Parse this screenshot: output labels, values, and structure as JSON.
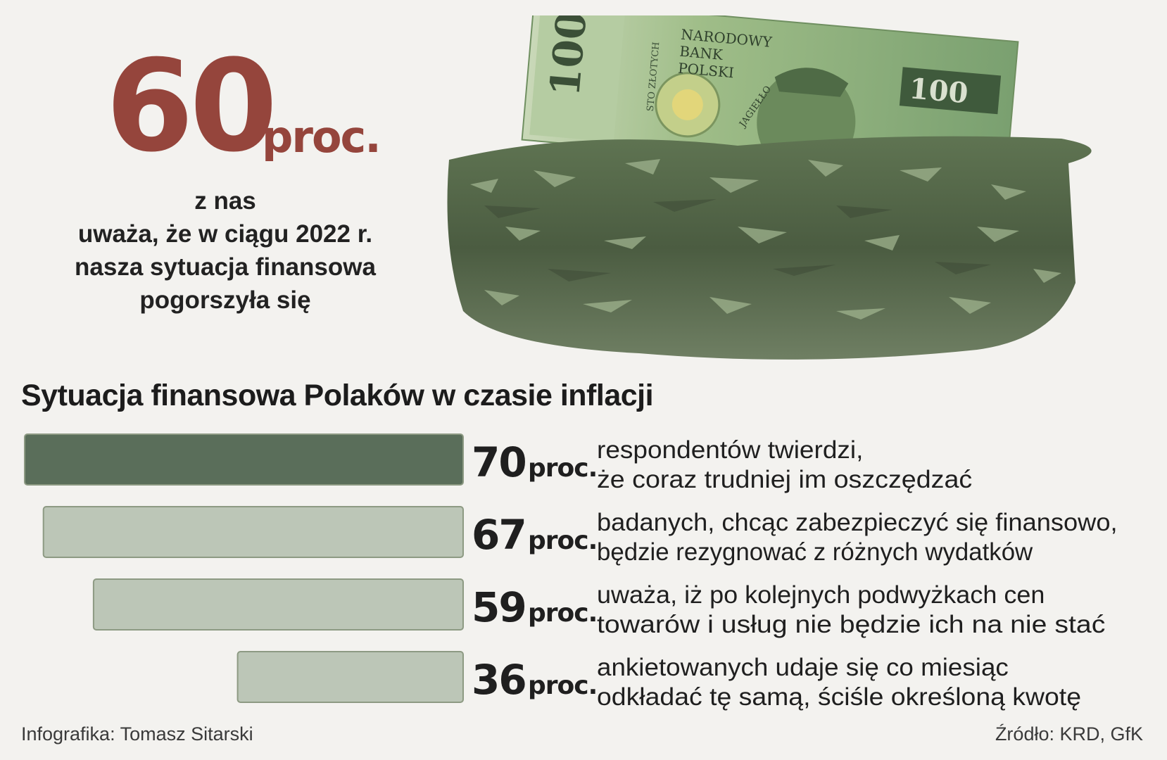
{
  "hero": {
    "number": "60",
    "unit": "proc.",
    "lines": [
      "z nas",
      "uważa, że w ciągu 2022 r.",
      "nasza sytuacja finansowa",
      "pogorszyła się"
    ]
  },
  "illustration": {
    "banknote_labels": [
      "NARODOWY",
      "BANK",
      "POLSKI",
      "100",
      "STO ZŁOTYCH",
      "JAGIEŁŁO"
    ]
  },
  "chart_data": {
    "type": "bar",
    "orientation": "horizontal",
    "title": "Sytuacja finansowa Polaków w czasie inflacji",
    "unit": "proc.",
    "xlim": [
      0,
      100
    ],
    "grid": false,
    "legend": "none",
    "values": [
      70,
      67,
      59,
      36
    ],
    "value_labels": [
      "70",
      "67",
      "59",
      "36"
    ],
    "descriptions": [
      [
        "respondentów twierdzi,",
        "że coraz trudniej im oszczędzać"
      ],
      [
        "badanych, chcąc zabezpieczyć się finansowo,",
        "będzie rezygnować z różnych wydatków"
      ],
      [
        "uważa, iż po kolejnych podwyżkach cen",
        "towarów i usług nie będzie ich na nie stać"
      ],
      [
        "ankietowanych udaje się co miesiąc",
        "odkładać tę samą, ściśle określoną kwotę"
      ]
    ],
    "colors": {
      "highlight": "#5a6e5a",
      "default": "#bcc6b7",
      "border": "#8d9a83"
    }
  },
  "footer": {
    "credit": "Infografika: Tomasz Sitarski",
    "source": "Źródło: KRD, GfK"
  },
  "colors": {
    "accent": "#95453c",
    "background": "#f3f2ef"
  }
}
